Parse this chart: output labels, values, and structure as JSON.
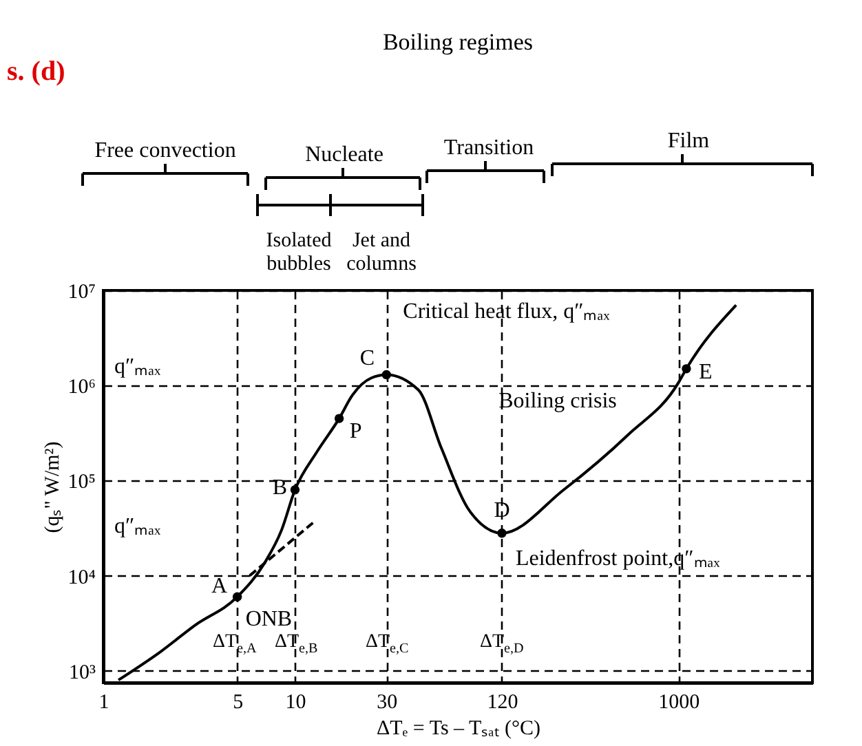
{
  "chart_data": {
    "type": "line",
    "title": "Boiling regimes",
    "xlabel": "ΔTₑ = Ts – Tₛₐₜ (°C)",
    "ylabel": "(qₛ\" W/m²)",
    "log": "xy",
    "xlim": [
      1,
      5000
    ],
    "ylim": [
      750,
      10000000
    ],
    "xticks": [
      1,
      5,
      10,
      30,
      120,
      1000
    ],
    "yticks": [
      {
        "value": 1000,
        "label": "10³"
      },
      {
        "value": 10000,
        "label": "10⁴"
      },
      {
        "value": 100000,
        "label": "10⁵"
      },
      {
        "value": 1000000,
        "label": "10⁶"
      },
      {
        "value": 10000000,
        "label": "10⁷"
      }
    ],
    "grid": true,
    "series": [
      {
        "type": "line",
        "color": "#000000",
        "line_style": "solid",
        "x": [
          1.2,
          2,
          3,
          5,
          7,
          8.5,
          10,
          13,
          17,
          20,
          25,
          30,
          44,
          58,
          82,
          120,
          252,
          543,
          1000,
          1100,
          2000
        ],
        "values": [
          800,
          1600,
          3000,
          6000,
          14000,
          30000,
          80000,
          200000,
          450000,
          800000,
          1200000,
          1300000,
          900000,
          220000,
          47000,
          28000,
          80000,
          300000,
          1070000,
          1500000,
          7000000
        ]
      },
      {
        "type": "line",
        "color": "#000000",
        "line_style": "dashed",
        "x": [
          5.8,
          12.4
        ],
        "values": [
          10000,
          36000
        ]
      },
      {
        "type": "scatter",
        "color": "#000000",
        "marker": "circle",
        "x": [
          5,
          10,
          17,
          30,
          120,
          1100
        ],
        "values": [
          6000,
          80000,
          450000,
          1300000,
          28000,
          1500000
        ]
      }
    ],
    "annotations": [
      "s. (d)",
      "Free convection",
      "Nucleate",
      "Transition",
      "Film",
      "Isolated\nbubbles",
      "Jet and\ncolumns",
      "Boiling crisis",
      "q″ₘₐₓ",
      "q″ₘₐₓ",
      "ΔT$_{e,A}$",
      "ΔT$_{e,B}$",
      "ΔT$_{e,C}$",
      "ΔT$_{e,D}$",
      {
        "text": "A",
        "x": 5,
        "y": 6000
      },
      {
        "text": "ONB",
        "x": 5,
        "y": 6000
      },
      {
        "text": "B",
        "x": 10,
        "y": 80000
      },
      {
        "text": "P",
        "x": 17,
        "y": 450000
      },
      {
        "text": "C",
        "x": 30,
        "y": 1300000
      },
      {
        "text": "D",
        "x": 120,
        "y": 28000
      },
      {
        "text": "E",
        "x": 1100,
        "y": 1500000
      },
      {
        "text": "Critical heat flux, q″ₘₐₓ",
        "x": 30,
        "y": 1300000
      },
      {
        "text": "Leidenfrost point,q″ₘₐₓ",
        "x": 120,
        "y": 28000
      }
    ]
  }
}
